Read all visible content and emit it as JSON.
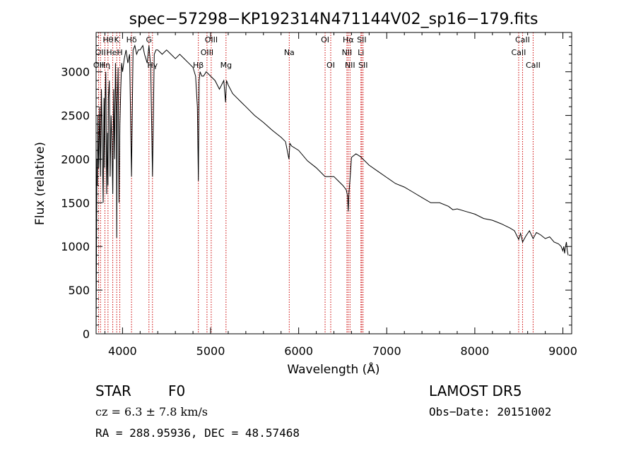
{
  "chart_data": {
    "type": "line",
    "title": "spec−57298−KP192314N471144V02_sp16−179.fits",
    "xlabel": "Wavelength (Å)",
    "ylabel": "Flux (relative)",
    "xlim": [
      3700,
      9100
    ],
    "ylim": [
      0,
      3450
    ],
    "x_ticks": [
      4000,
      5000,
      6000,
      7000,
      8000,
      9000
    ],
    "y_ticks": [
      0,
      500,
      1000,
      1500,
      2000,
      2500,
      3000
    ],
    "series": [
      {
        "color": "#000000",
        "x": [
          3700,
          3705,
          3710,
          3715,
          3720,
          3725,
          3730,
          3740,
          3750,
          3760,
          3770,
          3780,
          3790,
          3797,
          3800,
          3810,
          3820,
          3830,
          3835,
          3840,
          3850,
          3860,
          3870,
          3880,
          3889,
          3900,
          3910,
          3920,
          3930,
          3934,
          3940,
          3950,
          3960,
          3970,
          3980,
          3990,
          4000,
          4020,
          4040,
          4060,
          4080,
          4102,
          4120,
          4140,
          4160,
          4180,
          4200,
          4230,
          4250,
          4280,
          4300,
          4320,
          4340,
          4360,
          4380,
          4400,
          4450,
          4500,
          4550,
          4600,
          4650,
          4700,
          4750,
          4800,
          4830,
          4850,
          4861,
          4870,
          4880,
          4900,
          4920,
          4950,
          5000,
          5050,
          5100,
          5150,
          5170,
          5180,
          5200,
          5250,
          5300,
          5350,
          5400,
          5500,
          5600,
          5700,
          5800,
          5850,
          5890,
          5900,
          5920,
          6000,
          6100,
          6200,
          6300,
          6400,
          6450,
          6500,
          6540,
          6555,
          6563,
          6570,
          6585,
          6600,
          6650,
          6700,
          6750,
          6800,
          6900,
          7000,
          7100,
          7200,
          7300,
          7400,
          7500,
          7600,
          7700,
          7750,
          7800,
          7900,
          8000,
          8100,
          8200,
          8300,
          8400,
          8450,
          8498,
          8520,
          8542,
          8580,
          8620,
          8662,
          8700,
          8750,
          8800,
          8850,
          8900,
          8950,
          8980,
          9000,
          9010,
          9020,
          9030,
          9040,
          9050,
          9060
        ],
        "y": [
          0,
          1050,
          2000,
          1700,
          2500,
          2100,
          1900,
          2600,
          1800,
          2800,
          2200,
          1500,
          2700,
          1900,
          2600,
          3000,
          1600,
          2300,
          1700,
          2700,
          2900,
          1800,
          2500,
          2200,
          1600,
          2800,
          2000,
          3100,
          2500,
          1100,
          2600,
          3050,
          1500,
          2400,
          2800,
          3100,
          3000,
          3150,
          3250,
          3100,
          3200,
          1800,
          3250,
          3300,
          3200,
          3250,
          3250,
          3300,
          3200,
          3100,
          3300,
          3050,
          1800,
          3200,
          3250,
          3250,
          3200,
          3250,
          3200,
          3150,
          3200,
          3150,
          3100,
          3050,
          2950,
          2600,
          1750,
          2900,
          3000,
          2950,
          2950,
          3000,
          2950,
          2900,
          2800,
          2900,
          2650,
          2900,
          2850,
          2750,
          2700,
          2650,
          2600,
          2500,
          2420,
          2330,
          2250,
          2200,
          2000,
          2180,
          2150,
          2100,
          1980,
          1900,
          1800,
          1800,
          1750,
          1700,
          1650,
          1580,
          1400,
          1600,
          1800,
          2020,
          2060,
          2030,
          1980,
          1930,
          1860,
          1790,
          1720,
          1680,
          1620,
          1560,
          1500,
          1500,
          1460,
          1420,
          1430,
          1400,
          1370,
          1320,
          1300,
          1260,
          1210,
          1180,
          1080,
          1150,
          1050,
          1120,
          1180,
          1090,
          1160,
          1130,
          1090,
          1110,
          1050,
          1030,
          1000,
          950,
          1000,
          920,
          1000,
          1050,
          950,
          900
        ]
      }
    ],
    "lines": [
      {
        "x": 3728,
        "labels": [
          {
            "text": "OII",
            "row": 3
          }
        ]
      },
      {
        "x": 3750,
        "labels": [
          {
            "text": "OII",
            "row": 2
          }
        ]
      },
      {
        "x": 3800,
        "labels": [
          {
            "text": "Hη",
            "row": 3
          }
        ]
      },
      {
        "x": 3835,
        "labels": [
          {
            "text": "Hθ",
            "row": 1
          }
        ]
      },
      {
        "x": 3889,
        "labels": [
          {
            "text": "HeI",
            "row": 2
          }
        ]
      },
      {
        "x": 3934,
        "labels": [
          {
            "text": "K",
            "row": 1
          }
        ]
      },
      {
        "x": 3969,
        "labels": [
          {
            "text": "H",
            "row": 2
          }
        ]
      },
      {
        "x": 4102,
        "labels": [
          {
            "text": "Hδ",
            "row": 1
          }
        ]
      },
      {
        "x": 4300,
        "labels": [
          {
            "text": "G",
            "row": 1
          }
        ]
      },
      {
        "x": 4340,
        "labels": [
          {
            "text": "Hγ",
            "row": 3
          }
        ]
      },
      {
        "x": 4861,
        "labels": [
          {
            "text": "Hβ",
            "row": 3
          }
        ]
      },
      {
        "x": 4959,
        "labels": [
          {
            "text": "OIII",
            "row": 2
          }
        ]
      },
      {
        "x": 5007,
        "labels": [
          {
            "text": "OIII",
            "row": 1
          }
        ]
      },
      {
        "x": 5175,
        "labels": [
          {
            "text": "Mg",
            "row": 3
          }
        ]
      },
      {
        "x": 5893,
        "labels": [
          {
            "text": "Na",
            "row": 2
          }
        ]
      },
      {
        "x": 6300,
        "labels": [
          {
            "text": "OI",
            "row": 1
          }
        ]
      },
      {
        "x": 6364,
        "labels": [
          {
            "text": "OI",
            "row": 3
          }
        ]
      },
      {
        "x": 6548,
        "labels": [
          {
            "text": "NII",
            "row": 2
          }
        ]
      },
      {
        "x": 6563,
        "labels": [
          {
            "text": "Hα",
            "row": 1
          }
        ]
      },
      {
        "x": 6583,
        "labels": [
          {
            "text": "NII",
            "row": 3
          }
        ]
      },
      {
        "x": 6707,
        "labels": [
          {
            "text": "Li",
            "row": 2
          }
        ]
      },
      {
        "x": 6716,
        "labels": [
          {
            "text": "SII",
            "row": 1
          }
        ]
      },
      {
        "x": 6731,
        "labels": [
          {
            "text": "SII",
            "row": 3
          }
        ]
      },
      {
        "x": 8498,
        "labels": [
          {
            "text": "CaII",
            "row": 2
          }
        ]
      },
      {
        "x": 8542,
        "labels": [
          {
            "text": "CaII",
            "row": 1
          }
        ]
      },
      {
        "x": 8662,
        "labels": [
          {
            "text": "CaII",
            "row": 3
          }
        ]
      }
    ]
  },
  "info": {
    "class_label": "STAR",
    "subclass": "F0",
    "survey": "LAMOST DR5",
    "cz": "cz = 6.3 ± 7.8 km/s",
    "obs_date": "Obs−Date: 20151002",
    "radec": "RA = 288.95936, DEC =  48.57468"
  }
}
